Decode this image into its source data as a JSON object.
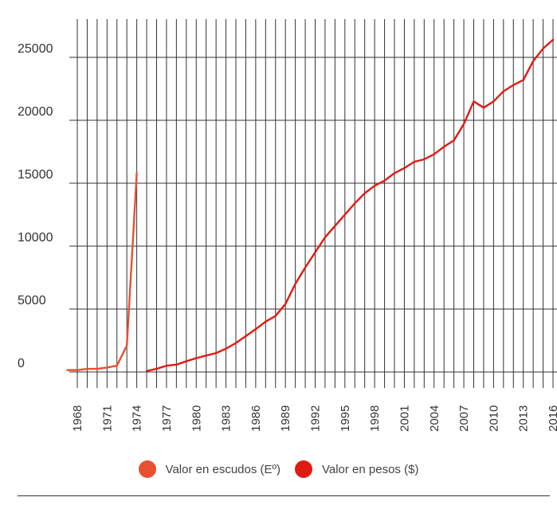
{
  "chart_data": {
    "type": "line",
    "title": "",
    "xlabel": "",
    "ylabel": "",
    "ylim": [
      0,
      27000
    ],
    "xlim": [
      1966.5,
      2016.5
    ],
    "y_ticks": [
      0,
      5000,
      10000,
      15000,
      20000,
      25000
    ],
    "y_tick_labels": [
      "0",
      "5000",
      "10000",
      "15000",
      "20000",
      "25000"
    ],
    "x_ticks": [
      1968,
      1971,
      1974,
      1977,
      1980,
      1983,
      1986,
      1989,
      1992,
      1995,
      1998,
      2001,
      2004,
      2007,
      2010,
      2013,
      2016
    ],
    "x_tick_labels": [
      "1968",
      "1971",
      "1974",
      "1977",
      "1980",
      "1983",
      "1986",
      "1989",
      "1992",
      "1995",
      "1998",
      "2001",
      "2004",
      "2007",
      "2010",
      "2013",
      "2016"
    ],
    "grid": "vertical-per-year, horizontal-per-tick",
    "series": [
      {
        "name": "Valor en escudos (Eº)",
        "color": "#e8502f",
        "x": [
          1967,
          1968,
          1969,
          1970,
          1971,
          1972,
          1973,
          1974
        ],
        "y": [
          150,
          150,
          250,
          250,
          350,
          500,
          2100,
          15800
        ]
      },
      {
        "name": "Valor en pesos ($)",
        "color": "#e01b12",
        "x": [
          1975,
          1976,
          1977,
          1978,
          1979,
          1980,
          1981,
          1982,
          1983,
          1984,
          1985,
          1986,
          1987,
          1988,
          1989,
          1990,
          1991,
          1992,
          1993,
          1994,
          1995,
          1996,
          1997,
          1998,
          1999,
          2000,
          2001,
          2002,
          2003,
          2004,
          2005,
          2006,
          2007,
          2008,
          2009,
          2010,
          2011,
          2012,
          2013,
          2014,
          2015,
          2016
        ],
        "y": [
          80,
          250,
          500,
          580,
          850,
          1100,
          1300,
          1500,
          1850,
          2300,
          2850,
          3400,
          4000,
          4450,
          5400,
          7000,
          8300,
          9500,
          10700,
          11600,
          12500,
          13400,
          14200,
          14800,
          15200,
          15800,
          16200,
          16700,
          16900,
          17300,
          17900,
          18400,
          19700,
          21500,
          21000,
          21500,
          22300,
          22800,
          23200,
          24700,
          25700,
          26400
        ]
      }
    ]
  },
  "legend": [
    {
      "label": "Valor en escudos (Eº)",
      "color": "#e8502f"
    },
    {
      "label": "Valor en pesos ($)",
      "color": "#e01b12"
    }
  ]
}
